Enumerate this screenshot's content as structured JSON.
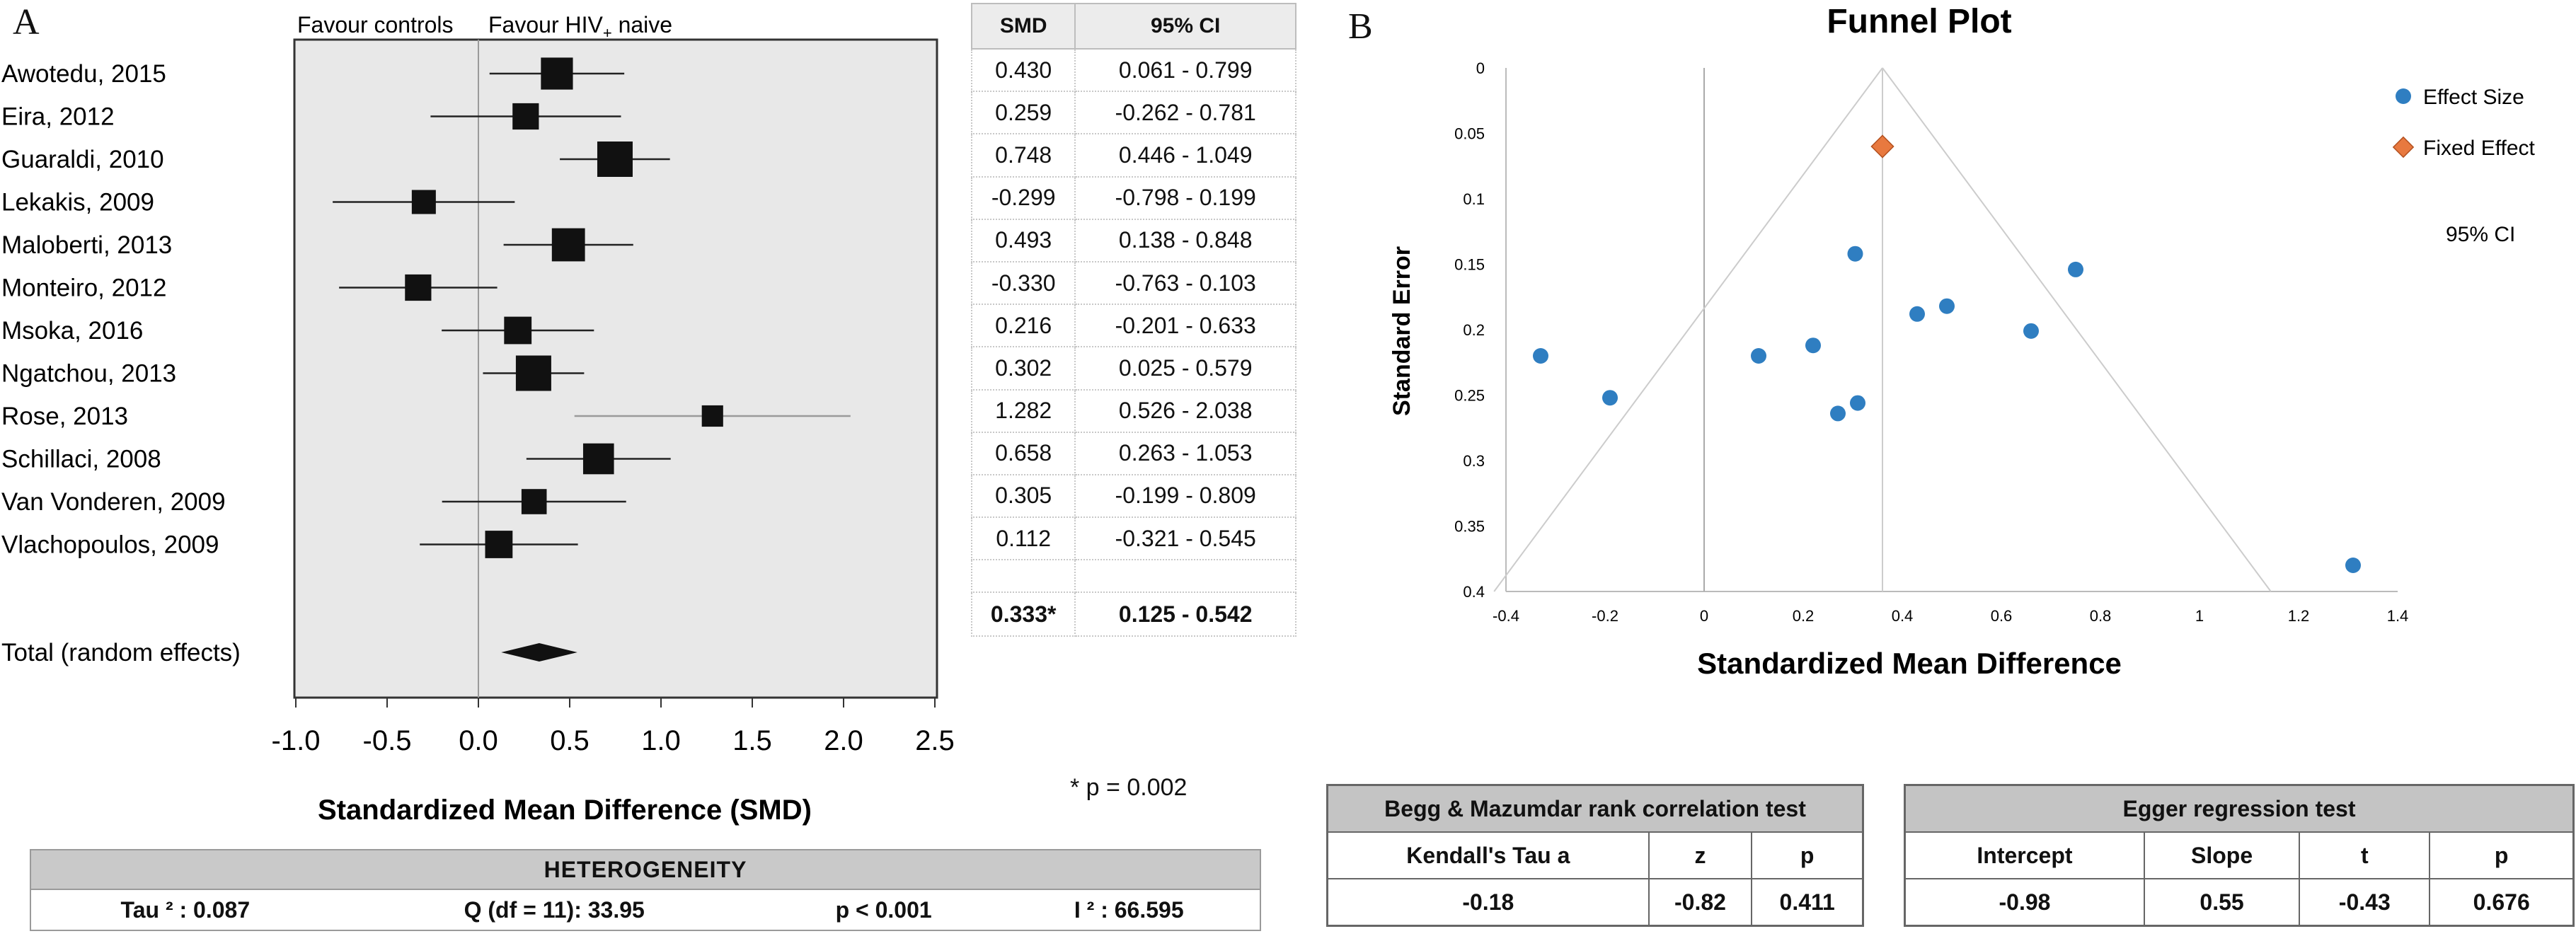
{
  "panel_labels": {
    "a": "A",
    "b": "B"
  },
  "forest": {
    "favour_left": "Favour controls",
    "favour_right": "Favour HIV",
    "favour_right_sub": "+",
    "favour_right_tail": " naive",
    "col_smd": "SMD",
    "col_ci": "95% CI",
    "pvalue_note": "* p = 0.002"
  },
  "heterogeneity": {
    "title": "HETEROGENEITY",
    "tau2": "Tau ² : 0.087",
    "q": "Q (df = 11): 33.95",
    "p": "p < 0.001",
    "i2": "I ² : 66.595"
  },
  "begg": {
    "title": "Begg & Mazumdar rank correlation test",
    "headers": [
      "Kendall's Tau a",
      "z",
      "p"
    ],
    "values": [
      "-0.18",
      "-0.82",
      "0.411"
    ]
  },
  "egger": {
    "title": "Egger regression test",
    "headers": [
      "Intercept",
      "Slope",
      "t",
      "p"
    ],
    "values": [
      "-0.98",
      "0.55",
      "-0.43",
      "0.676"
    ]
  },
  "chart_data": [
    {
      "type": "forest",
      "title": "",
      "xlabel": "Standardized Mean Difference (SMD)",
      "xlim": [
        -1.0,
        2.5
      ],
      "xticks": [
        "-1.0",
        "-0.5",
        "0.0",
        "0.5",
        "1.0",
        "1.5",
        "2.0",
        "2.5"
      ],
      "studies": [
        {
          "name": "Awotedu, 2015",
          "smd": 0.43,
          "lo": 0.061,
          "hi": 0.799,
          "smd_text": "0.430",
          "ci_text": "0.061 - 0.799",
          "weight": 0.85
        },
        {
          "name": "Eira, 2012",
          "smd": 0.259,
          "lo": -0.262,
          "hi": 0.781,
          "smd_text": "0.259",
          "ci_text": "-0.262 - 0.781",
          "weight": 0.6
        },
        {
          "name": "Guaraldi, 2010",
          "smd": 0.748,
          "lo": 0.446,
          "hi": 1.049,
          "smd_text": "0.748",
          "ci_text": "0.446 - 1.049",
          "weight": 1.0
        },
        {
          "name": "Lekakis, 2009",
          "smd": -0.299,
          "lo": -0.798,
          "hi": 0.199,
          "smd_text": "-0.299",
          "ci_text": "-0.798 - 0.199",
          "weight": 0.5
        },
        {
          "name": "Maloberti, 2013",
          "smd": 0.493,
          "lo": 0.138,
          "hi": 0.848,
          "smd_text": "0.493",
          "ci_text": "0.138 - 0.848",
          "weight": 0.9
        },
        {
          "name": "Monteiro, 2012",
          "smd": -0.33,
          "lo": -0.763,
          "hi": 0.103,
          "smd_text": "-0.330",
          "ci_text": "-0.763 - 0.103",
          "weight": 0.6
        },
        {
          "name": "Msoka, 2016",
          "smd": 0.216,
          "lo": -0.201,
          "hi": 0.633,
          "smd_text": "0.216",
          "ci_text": "-0.201 - 0.633",
          "weight": 0.65
        },
        {
          "name": "Ngatchou, 2013",
          "smd": 0.302,
          "lo": 0.025,
          "hi": 0.579,
          "smd_text": "0.302",
          "ci_text": "0.025 - 0.579",
          "weight": 1.0
        },
        {
          "name": "Rose, 2013",
          "smd": 1.282,
          "lo": 0.526,
          "hi": 2.038,
          "smd_text": "1.282",
          "ci_text": "0.526 - 2.038",
          "weight": 0.38
        },
        {
          "name": "Schillaci, 2008",
          "smd": 0.658,
          "lo": 0.263,
          "hi": 1.053,
          "smd_text": "0.658",
          "ci_text": "0.263 - 1.053",
          "weight": 0.8
        },
        {
          "name": "Van Vonderen, 2009",
          "smd": 0.305,
          "lo": -0.199,
          "hi": 0.809,
          "smd_text": "0.305",
          "ci_text": "-0.199 - 0.809",
          "weight": 0.55
        },
        {
          "name": "Vlachopoulos, 2009",
          "smd": 0.112,
          "lo": -0.321,
          "hi": 0.545,
          "smd_text": "0.112",
          "ci_text": "-0.321 - 0.545",
          "weight": 0.65
        }
      ],
      "total": {
        "name": "Total (random effects)",
        "smd": 0.333,
        "lo": 0.125,
        "hi": 0.542,
        "smd_text": "0.333*",
        "ci_text": "0.125 - 0.542"
      }
    },
    {
      "type": "scatter",
      "title": "Funnel Plot",
      "xlabel": "Standardized Mean Difference",
      "ylabel": "Standard Error",
      "xlim": [
        -0.4,
        1.4
      ],
      "ylim": [
        0,
        0.4
      ],
      "y_inverted": true,
      "xticks": [
        "-0.4",
        "-0.2",
        "0",
        "0.2",
        "0.4",
        "0.6",
        "0.8",
        "1",
        "1.2",
        "1.4"
      ],
      "yticks": [
        "0",
        "0.05",
        "0.1",
        "0.15",
        "0.2",
        "0.25",
        "0.3",
        "0.35",
        "0.4"
      ],
      "legend": [
        "Effect Size",
        "Fixed Effect"
      ],
      "ci_label": "95% CI",
      "legend_position": "right",
      "colors": {
        "effect": "#2f7ec1",
        "fixed": "#e8793f"
      },
      "effect_points": [
        {
          "x": -0.33,
          "y": 0.22
        },
        {
          "x": -0.19,
          "y": 0.252
        },
        {
          "x": 0.11,
          "y": 0.22
        },
        {
          "x": 0.22,
          "y": 0.212
        },
        {
          "x": 0.27,
          "y": 0.264
        },
        {
          "x": 0.305,
          "y": 0.142
        },
        {
          "x": 0.31,
          "y": 0.256
        },
        {
          "x": 0.43,
          "y": 0.188
        },
        {
          "x": 0.49,
          "y": 0.182
        },
        {
          "x": 0.66,
          "y": 0.201
        },
        {
          "x": 0.75,
          "y": 0.154
        },
        {
          "x": 1.31,
          "y": 0.38
        }
      ],
      "fixed_effect": {
        "x": 0.36,
        "y": 0.06
      }
    }
  ]
}
